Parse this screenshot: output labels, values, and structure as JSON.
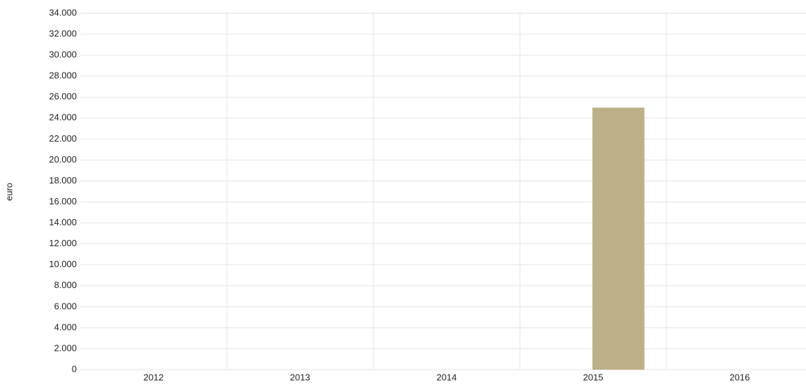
{
  "chart_data": {
    "type": "bar",
    "y_label": "euro",
    "categories": [
      "2012",
      "2013",
      "2014",
      "2015",
      "2016"
    ],
    "values": [
      0,
      0,
      0,
      25000,
      0
    ],
    "color": "#bbb087",
    "ylim": [
      0,
      34000
    ],
    "yticks": [
      0,
      {
        "value": 2000,
        "label": "2.000"
      },
      {
        "value": 4000,
        "label": "4.000"
      },
      {
        "value": 6000,
        "label": "6.000"
      },
      {
        "value": 8000,
        "label": "8.000"
      },
      {
        "value": 10000,
        "label": "10.000"
      },
      {
        "value": 12000,
        "label": "12.000"
      },
      {
        "value": 14000,
        "label": "14.000"
      },
      {
        "value": 16000,
        "label": "16.000"
      },
      {
        "value": 18000,
        "label": "18.000"
      },
      {
        "value": 20000,
        "label": "20.000"
      },
      {
        "value": 22000,
        "label": "22.000"
      },
      {
        "value": 24000,
        "label": "24.000"
      },
      {
        "value": 26000,
        "label": "26.000"
      },
      {
        "value": 28000,
        "label": "28.000"
      },
      {
        "value": 30000,
        "label": "30.000"
      },
      {
        "value": 32000,
        "label": "32.000"
      },
      {
        "value": 34000,
        "label": "34.000"
      }
    ],
    "grid": true
  }
}
